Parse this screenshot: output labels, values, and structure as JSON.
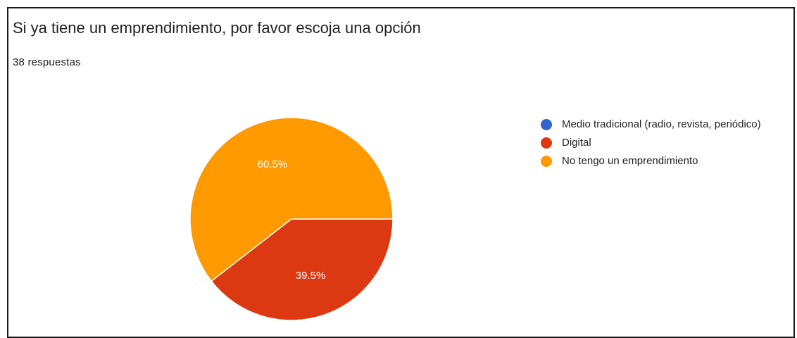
{
  "header": {
    "title": "Si ya tiene un emprendimiento, por favor escoja una opción",
    "response_count": "38 respuestas"
  },
  "chart_data": {
    "type": "pie",
    "title": "Si ya tiene un emprendimiento, por favor escoja una opción",
    "subtitle": "38 respuestas",
    "legend_position": "right",
    "slices": [
      {
        "label": "Medio tradicional (radio, revista, periódico)",
        "value": 0.0,
        "percent_label": "",
        "color": "#3366CC"
      },
      {
        "label": "Digital",
        "value": 39.5,
        "percent_label": "39.5%",
        "color": "#DC3912"
      },
      {
        "label": "No tengo un emprendimiento",
        "value": 60.5,
        "percent_label": "60.5%",
        "color": "#FF9900"
      }
    ]
  }
}
